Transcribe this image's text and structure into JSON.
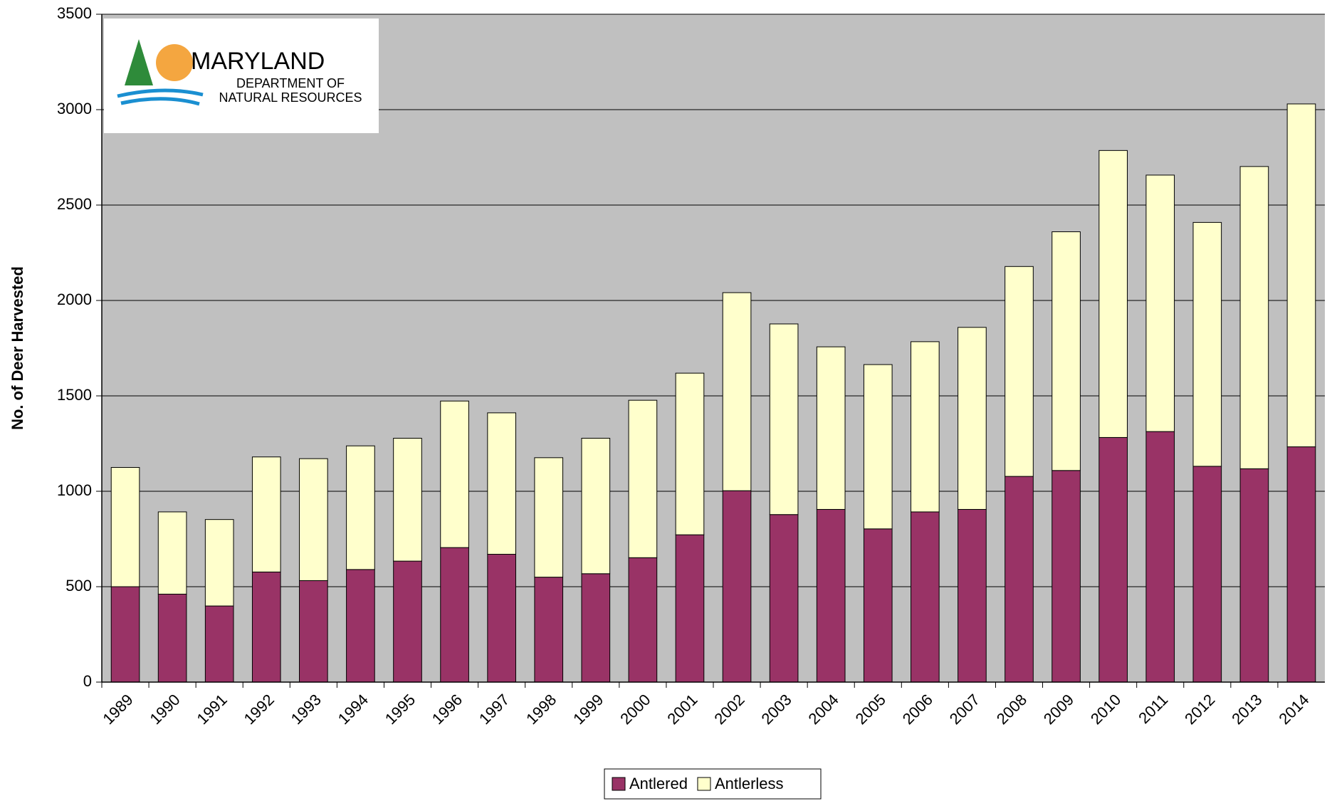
{
  "chart_data": {
    "type": "stacked_bar",
    "y_label": "No. of Deer Harvested",
    "logo": {
      "name": "MARYLAND",
      "line1": "DEPARTMENT OF",
      "line2": "NATURAL RESOURCES"
    },
    "categories": [
      "1989",
      "1990",
      "1991",
      "1992",
      "1993",
      "1994",
      "1995",
      "1996",
      "1997",
      "1998",
      "1999",
      "2000",
      "2001",
      "2002",
      "2003",
      "2004",
      "2005",
      "2006",
      "2007",
      "2008",
      "2009",
      "2010",
      "2011",
      "2012",
      "2013",
      "2014"
    ],
    "series": [
      {
        "name": "Antlered",
        "color": "#993366",
        "values": [
          500,
          461,
          399,
          577,
          532,
          590,
          634,
          705,
          670,
          550,
          568,
          652,
          772,
          1003,
          878,
          905,
          803,
          892,
          905,
          1078,
          1109,
          1282,
          1313,
          1131,
          1118,
          1233
        ]
      },
      {
        "name": "Antlerless",
        "color": "#ffffcc",
        "values": [
          625,
          431,
          453,
          603,
          639,
          648,
          644,
          768,
          741,
          626,
          710,
          825,
          847,
          1038,
          999,
          852,
          861,
          892,
          954,
          1100,
          1251,
          1504,
          1344,
          1278,
          1584,
          1797
        ]
      }
    ],
    "ylim": [
      0,
      3500
    ],
    "yticks": [
      0,
      500,
      1000,
      1500,
      2000,
      2500,
      3000,
      3500
    ],
    "grid": true,
    "legend": "bottom"
  }
}
